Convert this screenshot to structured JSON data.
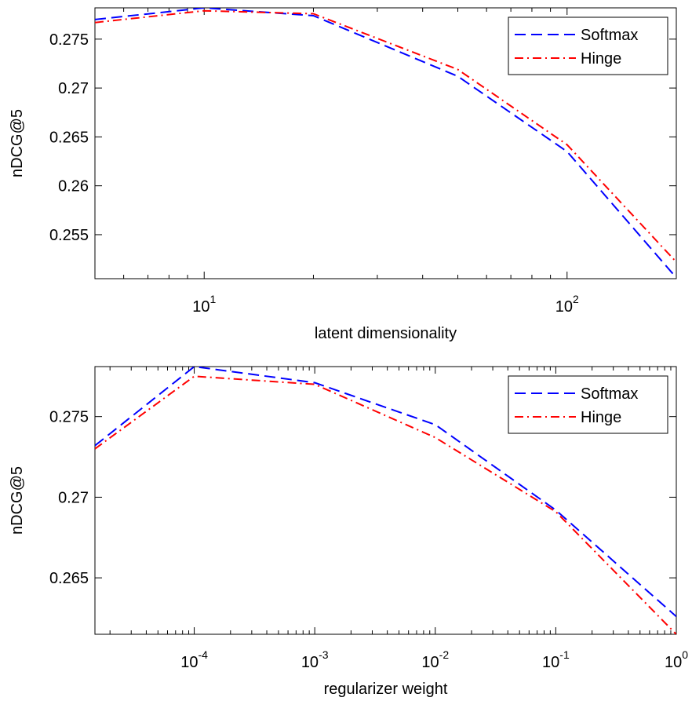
{
  "chart_data": [
    {
      "type": "line",
      "title": "",
      "xlabel": "latent dimensionality",
      "ylabel": "nDCG@5",
      "xscale": "log",
      "xlim": [
        5,
        200
      ],
      "ylim": [
        0.2505,
        0.2782
      ],
      "xticks": [
        {
          "value": 10,
          "base": "10",
          "exp": "1"
        },
        {
          "value": 100,
          "base": "10",
          "exp": "2"
        }
      ],
      "yticks": [
        {
          "value": 0.255,
          "label": "0.255"
        },
        {
          "value": 0.26,
          "label": "0.26"
        },
        {
          "value": 0.265,
          "label": "0.265"
        },
        {
          "value": 0.27,
          "label": "0.27"
        },
        {
          "value": 0.275,
          "label": "0.275"
        }
      ],
      "grid": false,
      "legend_position": "top-right",
      "series": [
        {
          "name": "Softmax",
          "color": "#0000ff",
          "dash": "dashed",
          "x": [
            5,
            10,
            20,
            50,
            100,
            200
          ],
          "y": [
            0.277,
            0.2782,
            0.2774,
            0.2712,
            0.2635,
            0.2506
          ]
        },
        {
          "name": "Hinge",
          "color": "#ff0000",
          "dash": "dashdot",
          "x": [
            5,
            10,
            20,
            50,
            100,
            200
          ],
          "y": [
            0.2767,
            0.2779,
            0.2776,
            0.2719,
            0.2642,
            0.2522
          ]
        }
      ]
    },
    {
      "type": "line",
      "title": "",
      "xlabel": "regularizer weight",
      "ylabel": "nDCG@5",
      "xscale": "log",
      "xlim": [
        1.5e-05,
        1
      ],
      "ylim": [
        0.2615,
        0.2781
      ],
      "xticks": [
        {
          "value": 0.0001,
          "base": "10",
          "exp": "-4"
        },
        {
          "value": 0.001,
          "base": "10",
          "exp": "-3"
        },
        {
          "value": 0.01,
          "base": "10",
          "exp": "-2"
        },
        {
          "value": 0.1,
          "base": "10",
          "exp": "-1"
        },
        {
          "value": 1,
          "base": "10",
          "exp": "0"
        }
      ],
      "yticks": [
        {
          "value": 0.265,
          "label": "0.265"
        },
        {
          "value": 0.27,
          "label": "0.27"
        },
        {
          "value": 0.275,
          "label": "0.275"
        }
      ],
      "grid": false,
      "legend_position": "top-right",
      "series": [
        {
          "name": "Softmax",
          "color": "#0000ff",
          "dash": "dashed",
          "x": [
            1.5e-05,
            0.0001,
            0.001,
            0.01,
            0.1,
            1
          ],
          "y": [
            0.2732,
            0.2781,
            0.2771,
            0.2745,
            0.2692,
            0.2626
          ]
        },
        {
          "name": "Hinge",
          "color": "#ff0000",
          "dash": "dashdot",
          "x": [
            1.5e-05,
            0.0001,
            0.001,
            0.01,
            0.1,
            1
          ],
          "y": [
            0.273,
            0.2775,
            0.277,
            0.2737,
            0.2691,
            0.2615
          ]
        }
      ]
    }
  ]
}
